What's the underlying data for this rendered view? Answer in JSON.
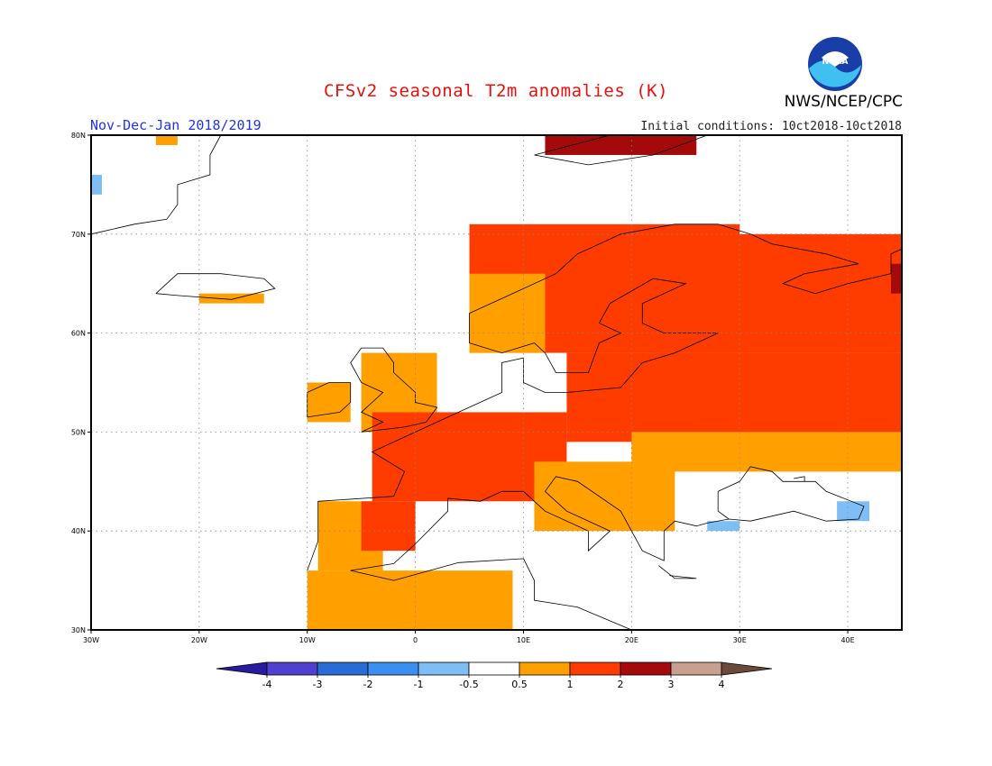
{
  "title": "CFSv2 seasonal T2m anomalies (K)",
  "period": "Nov-Dec-Jan 2018/2019",
  "initial_conditions": "Initial conditions: 10ct2018-10ct2018",
  "org": "NWS/NCEP/CPC",
  "logo_text": "NOAA",
  "logo_icon": "noaa-logo-icon",
  "map": {
    "lon_range": [
      -30,
      45
    ],
    "lat_range": [
      30,
      80
    ],
    "lon_ticks": [
      {
        "v": -30,
        "label": "30W"
      },
      {
        "v": -20,
        "label": "20W"
      },
      {
        "v": -10,
        "label": "10W"
      },
      {
        "v": 0,
        "label": "0"
      },
      {
        "v": 10,
        "label": "10E"
      },
      {
        "v": 20,
        "label": "20E"
      },
      {
        "v": 30,
        "label": "30E"
      },
      {
        "v": 40,
        "label": "40E"
      }
    ],
    "lat_ticks": [
      {
        "v": 30,
        "label": "30N"
      },
      {
        "v": 40,
        "label": "40N"
      },
      {
        "v": 50,
        "label": "50N"
      },
      {
        "v": 60,
        "label": "60N"
      },
      {
        "v": 70,
        "label": "70N"
      },
      {
        "v": 80,
        "label": "80N"
      }
    ],
    "gridlines": "dotted",
    "regions": [
      {
        "name": "Spain / Portugal",
        "lon": [
          -9,
          -3
        ],
        "lat": [
          36,
          43
        ],
        "level": 1
      },
      {
        "name": "Central Spain",
        "lon": [
          -5,
          0
        ],
        "lat": [
          38,
          43
        ],
        "level": 2
      },
      {
        "name": "North Africa",
        "lon": [
          -10,
          9
        ],
        "lat": [
          30,
          36
        ],
        "level": 1
      },
      {
        "name": "Great Britain",
        "lon": [
          -5,
          2
        ],
        "lat": [
          50,
          58
        ],
        "level": 1
      },
      {
        "name": "Ireland",
        "lon": [
          -10,
          -6
        ],
        "lat": [
          51,
          55
        ],
        "level": 1
      },
      {
        "name": "France / Germany",
        "lon": [
          -4,
          14
        ],
        "lat": [
          43,
          52
        ],
        "level": 2
      },
      {
        "name": "Italy / Balkans",
        "lon": [
          11,
          24
        ],
        "lat": [
          40,
          47
        ],
        "level": 1
      },
      {
        "name": "Poland / Belarus / Russia",
        "lon": [
          14,
          45
        ],
        "lat": [
          49,
          58
        ],
        "level": 2
      },
      {
        "name": "Ukraine / South Russia",
        "lon": [
          20,
          45
        ],
        "lat": [
          46,
          50
        ],
        "level": 1
      },
      {
        "name": "Scandinavia",
        "lon": [
          5,
          30
        ],
        "lat": [
          58,
          71
        ],
        "level": 2
      },
      {
        "name": "Norway coast",
        "lon": [
          5,
          12
        ],
        "lat": [
          58,
          66
        ],
        "level": 1
      },
      {
        "name": "Finland / NW Russia",
        "lon": [
          22,
          45
        ],
        "lat": [
          58,
          70
        ],
        "level": 2
      },
      {
        "name": "Urals edge",
        "lon": [
          44,
          45
        ],
        "lat": [
          64,
          67
        ],
        "level": 3
      },
      {
        "name": "Svalbard / Franz Josef",
        "lon": [
          12,
          26
        ],
        "lat": [
          78,
          80
        ],
        "level": 3
      },
      {
        "name": "Greenland tip",
        "lon": [
          -24,
          -22
        ],
        "lat": [
          79,
          80
        ],
        "level": 1
      },
      {
        "name": "Iceland",
        "lon": [
          -20,
          -14
        ],
        "lat": [
          63,
          64
        ],
        "level": 1
      },
      {
        "name": "Turkey NW",
        "lon": [
          27,
          30
        ],
        "lat": [
          40,
          41
        ],
        "level": -1
      },
      {
        "name": "Caucasus",
        "lon": [
          39,
          42
        ],
        "lat": [
          41,
          43
        ],
        "level": -1
      },
      {
        "name": "Greenland E",
        "lon": [
          -30,
          -29
        ],
        "lat": [
          74,
          76
        ],
        "level": -1
      }
    ]
  },
  "colorbar": {
    "labels": [
      "-4",
      "-3",
      "-2",
      "-1",
      "-0.5",
      "0.5",
      "1",
      "2",
      "3",
      "4"
    ],
    "colors": [
      "#2a1a9e",
      "#5040d0",
      "#2a6cd6",
      "#3c8ff0",
      "#7fbdf5",
      "#ffffff",
      "#ffa000",
      "#ff3c00",
      "#a50a0a",
      "#c8a090",
      "#6b4a3a"
    ]
  },
  "chart_data": {
    "type": "heatmap",
    "title": "CFSv2 seasonal T2m anomalies (K)",
    "subtitle": "Nov-Dec-Jan 2018/2019",
    "xlim": [
      -30,
      45
    ],
    "ylim": [
      30,
      80
    ],
    "color_levels": [
      -4,
      -3,
      -2,
      -1,
      -0.5,
      0.5,
      1,
      2,
      3,
      4
    ]
  }
}
